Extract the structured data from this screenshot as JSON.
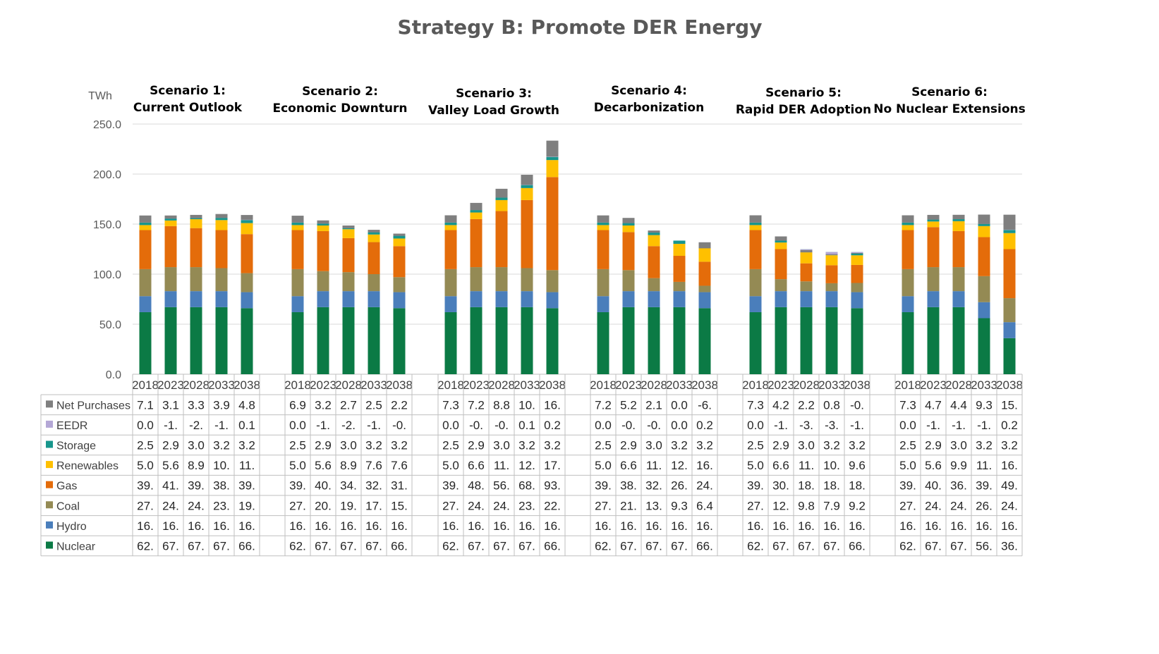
{
  "chart_data": {
    "type": "bar",
    "stacked": true,
    "title": "Strategy B: Promote DER Energy",
    "ylabel": "TWh",
    "ylim": [
      0,
      250
    ],
    "yticks": [
      "0.0",
      "50.0",
      "100.0",
      "150.0",
      "200.0",
      "250.0"
    ],
    "years": [
      "2018",
      "2023",
      "2028",
      "2033",
      "2038"
    ],
    "series_names": [
      "Net Purchases",
      "EEDR",
      "Storage",
      "Renewables",
      "Gas",
      "Coal",
      "Hydro",
      "Nuclear"
    ],
    "series_colors": {
      "Nuclear": "#0b7a45",
      "Hydro": "#4a7ebb",
      "Coal": "#948a54",
      "Gas": "#e46c0a",
      "Renewables": "#ffc000",
      "Storage": "#17968c",
      "EEDR": "#b4a7d6",
      "Net Purchases": "#7f7f7f"
    },
    "scenarios": [
      {
        "line1": "Scenario 1:",
        "line2": "Current Outlook",
        "values": {
          "Nuclear": [
            62,
            67,
            67,
            67,
            66
          ],
          "Hydro": [
            16,
            16,
            16,
            16,
            16
          ],
          "Coal": [
            27,
            24,
            24,
            23,
            19
          ],
          "Gas": [
            39,
            41,
            39,
            38,
            39
          ],
          "Renewables": [
            5.0,
            5.6,
            8.9,
            10,
            11
          ],
          "Storage": [
            2.5,
            2.9,
            3.0,
            3.2,
            3.2
          ],
          "EEDR": [
            0.0,
            -1,
            -2,
            -1,
            0.1
          ],
          "Net Purchases": [
            7.1,
            3.1,
            3.3,
            3.9,
            4.8
          ]
        },
        "labels": {
          "Net Purchases": [
            "7.1",
            "3.1",
            "3.3",
            "3.9",
            "4.8"
          ],
          "EEDR": [
            "0.0",
            "-1.",
            "-2.",
            "-1.",
            "0.1"
          ],
          "Storage": [
            "2.5",
            "2.9",
            "3.0",
            "3.2",
            "3.2"
          ],
          "Renewables": [
            "5.0",
            "5.6",
            "8.9",
            "10.",
            "11."
          ],
          "Gas": [
            "39.",
            "41.",
            "39.",
            "38.",
            "39."
          ],
          "Coal": [
            "27.",
            "24.",
            "24.",
            "23.",
            "19."
          ],
          "Hydro": [
            "16.",
            "16.",
            "16.",
            "16.",
            "16."
          ],
          "Nuclear": [
            "62.",
            "67.",
            "67.",
            "67.",
            "66."
          ]
        }
      },
      {
        "line1": "Scenario 2:",
        "line2": "Economic Downturn",
        "values": {
          "Nuclear": [
            62,
            67,
            67,
            67,
            66
          ],
          "Hydro": [
            16,
            16,
            16,
            16,
            16
          ],
          "Coal": [
            27,
            20,
            19,
            17,
            15
          ],
          "Gas": [
            39,
            40,
            34,
            32,
            31
          ],
          "Renewables": [
            5.0,
            5.6,
            8.9,
            7.6,
            7.6
          ],
          "Storage": [
            2.5,
            2.9,
            3.0,
            3.2,
            3.2
          ],
          "EEDR": [
            0.0,
            -1,
            -2,
            -1,
            -0.5
          ],
          "Net Purchases": [
            6.9,
            3.2,
            2.7,
            2.5,
            2.2
          ]
        },
        "labels": {
          "Net Purchases": [
            "6.9",
            "3.2",
            "2.7",
            "2.5",
            "2.2"
          ],
          "EEDR": [
            "0.0",
            "-1.",
            "-2.",
            "-1.",
            "-0."
          ],
          "Storage": [
            "2.5",
            "2.9",
            "3.0",
            "3.2",
            "3.2"
          ],
          "Renewables": [
            "5.0",
            "5.6",
            "8.9",
            "7.6",
            "7.6"
          ],
          "Gas": [
            "39.",
            "40.",
            "34.",
            "32.",
            "31."
          ],
          "Coal": [
            "27.",
            "20.",
            "19.",
            "17.",
            "15."
          ],
          "Hydro": [
            "16.",
            "16.",
            "16.",
            "16.",
            "16."
          ],
          "Nuclear": [
            "62.",
            "67.",
            "67.",
            "67.",
            "66."
          ]
        }
      },
      {
        "line1": "Scenario 3:",
        "line2": "Valley Load Growth",
        "values": {
          "Nuclear": [
            62,
            67,
            67,
            67,
            66
          ],
          "Hydro": [
            16,
            16,
            16,
            16,
            16
          ],
          "Coal": [
            27,
            24,
            24,
            23,
            22
          ],
          "Gas": [
            39,
            48,
            56,
            68,
            93
          ],
          "Renewables": [
            5.0,
            6.6,
            11,
            12,
            17
          ],
          "Storage": [
            2.5,
            2.9,
            3.0,
            3.2,
            3.2
          ],
          "EEDR": [
            0.0,
            -0.5,
            -0.5,
            0.1,
            0.2
          ],
          "Net Purchases": [
            7.3,
            7.2,
            8.8,
            10,
            16
          ]
        },
        "labels": {
          "Net Purchases": [
            "7.3",
            "7.2",
            "8.8",
            "10.",
            "16."
          ],
          "EEDR": [
            "0.0",
            "-0.",
            "-0.",
            "0.1",
            "0.2"
          ],
          "Storage": [
            "2.5",
            "2.9",
            "3.0",
            "3.2",
            "3.2"
          ],
          "Renewables": [
            "5.0",
            "6.6",
            "11.",
            "12.",
            "17."
          ],
          "Gas": [
            "39.",
            "48.",
            "56.",
            "68.",
            "93."
          ],
          "Coal": [
            "27.",
            "24.",
            "24.",
            "23.",
            "22."
          ],
          "Hydro": [
            "16.",
            "16.",
            "16.",
            "16.",
            "16."
          ],
          "Nuclear": [
            "62.",
            "67.",
            "67.",
            "67.",
            "66."
          ]
        }
      },
      {
        "line1": "Scenario 4:",
        "line2": "Decarbonization",
        "values": {
          "Nuclear": [
            62,
            67,
            67,
            67,
            66
          ],
          "Hydro": [
            16,
            16,
            16,
            16,
            16
          ],
          "Coal": [
            27,
            21,
            13,
            9.3,
            6.4
          ],
          "Gas": [
            39,
            38,
            32,
            26,
            24
          ],
          "Renewables": [
            5.0,
            6.6,
            11,
            12,
            16
          ],
          "Storage": [
            2.5,
            2.9,
            3.0,
            3.2,
            3.2
          ],
          "EEDR": [
            0.0,
            -0.5,
            -0.5,
            0.0,
            0.2
          ],
          "Net Purchases": [
            7.2,
            5.2,
            2.1,
            0.0,
            -6
          ]
        },
        "labels": {
          "Net Purchases": [
            "7.2",
            "5.2",
            "2.1",
            "0.0",
            "-6."
          ],
          "EEDR": [
            "0.0",
            "-0.",
            "-0.",
            "0.0",
            "0.2"
          ],
          "Storage": [
            "2.5",
            "2.9",
            "3.0",
            "3.2",
            "3.2"
          ],
          "Renewables": [
            "5.0",
            "6.6",
            "11.",
            "12.",
            "16."
          ],
          "Gas": [
            "39.",
            "38.",
            "32.",
            "26.",
            "24."
          ],
          "Coal": [
            "27.",
            "21.",
            "13.",
            "9.3",
            "6.4"
          ],
          "Hydro": [
            "16.",
            "16.",
            "16.",
            "16.",
            "16."
          ],
          "Nuclear": [
            "62.",
            "67.",
            "67.",
            "67.",
            "66."
          ]
        }
      },
      {
        "line1": "Scenario 5:",
        "line2": "Rapid DER Adoption",
        "values": {
          "Nuclear": [
            62,
            67,
            67,
            67,
            66
          ],
          "Hydro": [
            16,
            16,
            16,
            16,
            16
          ],
          "Coal": [
            27,
            12,
            9.8,
            7.9,
            9.2
          ],
          "Gas": [
            39,
            30,
            18,
            18,
            18
          ],
          "Renewables": [
            5.0,
            6.6,
            11,
            10,
            9.6
          ],
          "Storage": [
            2.5,
            2.9,
            3.0,
            3.2,
            3.2
          ],
          "EEDR": [
            0.0,
            -1,
            -3,
            -3,
            -1
          ],
          "Net Purchases": [
            7.3,
            4.2,
            2.2,
            0.8,
            -0.5
          ]
        },
        "labels": {
          "Net Purchases": [
            "7.3",
            "4.2",
            "2.2",
            "0.8",
            "-0."
          ],
          "EEDR": [
            "0.0",
            "-1.",
            "-3.",
            "-3.",
            "-1."
          ],
          "Storage": [
            "2.5",
            "2.9",
            "3.0",
            "3.2",
            "3.2"
          ],
          "Renewables": [
            "5.0",
            "6.6",
            "11.",
            "10.",
            "9.6"
          ],
          "Gas": [
            "39.",
            "30.",
            "18.",
            "18.",
            "18."
          ],
          "Coal": [
            "27.",
            "12.",
            "9.8",
            "7.9",
            "9.2"
          ],
          "Hydro": [
            "16.",
            "16.",
            "16.",
            "16.",
            "16."
          ],
          "Nuclear": [
            "62.",
            "67.",
            "67.",
            "67.",
            "66."
          ]
        }
      },
      {
        "line1": "Scenario 6:",
        "line2": "No Nuclear Extensions",
        "values": {
          "Nuclear": [
            62,
            67,
            67,
            56,
            36
          ],
          "Hydro": [
            16,
            16,
            16,
            16,
            16
          ],
          "Coal": [
            27,
            24,
            24,
            26,
            24
          ],
          "Gas": [
            39,
            40,
            36,
            39,
            49
          ],
          "Renewables": [
            5.0,
            5.6,
            9.9,
            11,
            16
          ],
          "Storage": [
            2.5,
            2.9,
            3.0,
            3.2,
            3.2
          ],
          "EEDR": [
            0.0,
            -1,
            -1,
            -1,
            0.2
          ],
          "Net Purchases": [
            7.3,
            4.7,
            4.4,
            9.3,
            15
          ]
        },
        "labels": {
          "Net Purchases": [
            "7.3",
            "4.7",
            "4.4",
            "9.3",
            "15."
          ],
          "EEDR": [
            "0.0",
            "-1.",
            "-1.",
            "-1.",
            "0.2"
          ],
          "Storage": [
            "2.5",
            "2.9",
            "3.0",
            "3.2",
            "3.2"
          ],
          "Renewables": [
            "5.0",
            "5.6",
            "9.9",
            "11.",
            "16."
          ],
          "Gas": [
            "39.",
            "40.",
            "36.",
            "39.",
            "49."
          ],
          "Coal": [
            "27.",
            "24.",
            "24.",
            "26.",
            "24."
          ],
          "Hydro": [
            "16.",
            "16.",
            "16.",
            "16.",
            "16."
          ],
          "Nuclear": [
            "62.",
            "67.",
            "67.",
            "56.",
            "36."
          ]
        }
      }
    ]
  }
}
